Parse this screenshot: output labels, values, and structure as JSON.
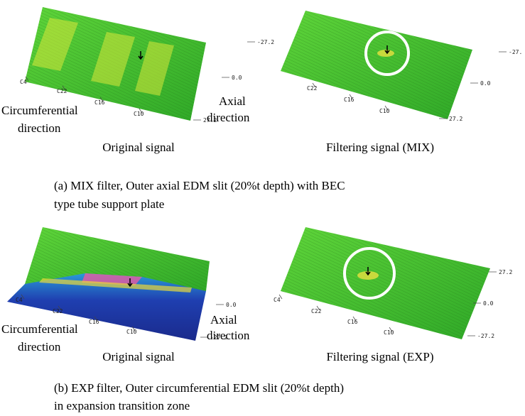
{
  "panels": [
    {
      "plots": [
        {
          "caption": "Original signal",
          "circ_ticks": [
            "C4",
            "C22",
            "C16",
            "C10"
          ],
          "axial_ticks": [
            "-27.2",
            "0.0",
            "27.2"
          ],
          "circ_label": [
            "Circumferential",
            "direction"
          ],
          "axial_label": [
            "Axial",
            "direction"
          ]
        },
        {
          "caption": "Filtering signal (MIX)",
          "circ_ticks": [
            "C22",
            "C16",
            "C10"
          ],
          "axial_ticks": [
            "-27.",
            "0.0",
            "27.2"
          ]
        }
      ],
      "caption": [
        "(a) MIX filter, Outer axial EDM slit (20%t depth) with BEC",
        "type tube support plate"
      ]
    },
    {
      "plots": [
        {
          "caption": "Original signal",
          "circ_ticks": [
            "C4",
            "C22",
            "C16",
            "C10"
          ],
          "axial_ticks": [
            "0.0",
            "-27.2"
          ],
          "circ_label": [
            "Circumferential",
            "direction"
          ],
          "axial_label": [
            "Axial",
            "direction"
          ]
        },
        {
          "caption": "Filtering signal (EXP)",
          "circ_ticks": [
            "C4",
            "C22",
            "C16",
            "C10"
          ],
          "axial_ticks": [
            "27.2",
            "0.0",
            "-27.2"
          ]
        }
      ],
      "caption": [
        "(b) EXP filter, Outer circumferential EDM slit (20%t depth)",
        "in expansion transition zone"
      ]
    }
  ]
}
